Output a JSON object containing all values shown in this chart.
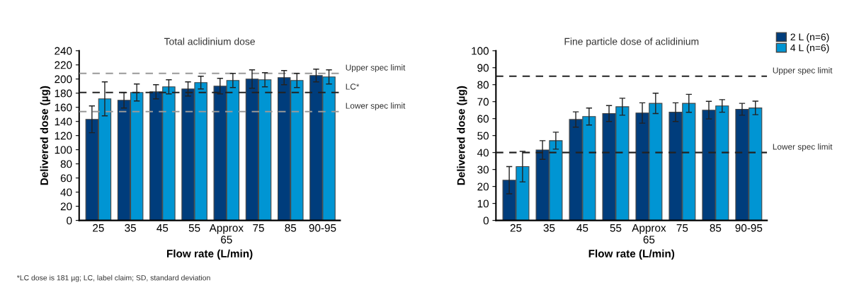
{
  "chart_data": [
    {
      "type": "bar",
      "title": "Total aclidinium dose",
      "xlabel": "Flow rate (L/min)",
      "ylabel": "Delivered dose (µg)",
      "categories": [
        "25",
        "35",
        "45",
        "55",
        "Approx\n65",
        "75",
        "85",
        "90-95"
      ],
      "series": [
        {
          "color": "#003d7c",
          "values": [
            143,
            170,
            182,
            186,
            190,
            200,
            202,
            205
          ],
          "errors": [
            19,
            11,
            10,
            10,
            11,
            13,
            10,
            9
          ]
        },
        {
          "color": "#0095d3",
          "values": [
            172,
            181,
            189,
            195,
            198,
            199,
            198,
            203
          ],
          "errors": [
            24,
            12,
            10,
            9,
            10,
            10,
            10,
            10
          ]
        }
      ],
      "ylim": [
        0,
        240
      ],
      "yticks": [
        0,
        20,
        40,
        60,
        80,
        100,
        120,
        140,
        160,
        180,
        200,
        220,
        240
      ],
      "ref_lines": [
        {
          "axis": "y",
          "value": 208,
          "label": "Upper spec limit",
          "color": "#999999",
          "line_style": "dashed"
        },
        {
          "axis": "y",
          "value": 181,
          "label": "LC*",
          "color": "#222222",
          "line_style": "dashed"
        },
        {
          "axis": "y",
          "value": 154,
          "label": "Lower spec limit",
          "color": "#999999",
          "line_style": "dashed"
        }
      ],
      "annotations": [
        "*LC dose is 181 µg; LC, label claim; SD, standard deviation"
      ],
      "grid": false
    },
    {
      "type": "bar",
      "title": "Fine particle dose of aclidinium",
      "xlabel": "Flow rate (L/min)",
      "ylabel": "Delivered dose (µg)",
      "categories": [
        "25",
        "35",
        "45",
        "55",
        "Approx\n65",
        "75",
        "85",
        "90-95"
      ],
      "series": [
        {
          "name": "2 L (n=6)",
          "color": "#003d7c",
          "values": [
            23.7,
            41.5,
            59.5,
            63,
            63.3,
            63.8,
            65,
            65.5
          ],
          "errors": [
            8,
            5.5,
            4.5,
            4.7,
            6,
            5.5,
            5.2,
            3.5
          ]
        },
        {
          "name": "4 L (n=6)",
          "color": "#0095d3",
          "values": [
            31.7,
            47,
            61.2,
            67,
            69,
            69,
            67.5,
            66.3
          ],
          "errors": [
            9,
            5,
            5,
            5,
            6,
            5.3,
            3.7,
            4
          ]
        }
      ],
      "ylim": [
        0,
        100
      ],
      "yticks": [
        0,
        10,
        20,
        30,
        40,
        50,
        60,
        70,
        80,
        90,
        100
      ],
      "ref_lines": [
        {
          "axis": "y",
          "value": 85,
          "label": "Upper spec limit",
          "color": "#222222",
          "line_style": "dashed"
        },
        {
          "axis": "y",
          "value": 40,
          "label": "Lower spec limit",
          "color": "#222222",
          "line_style": "dashed"
        }
      ],
      "grid": false,
      "legend": "top right"
    }
  ]
}
